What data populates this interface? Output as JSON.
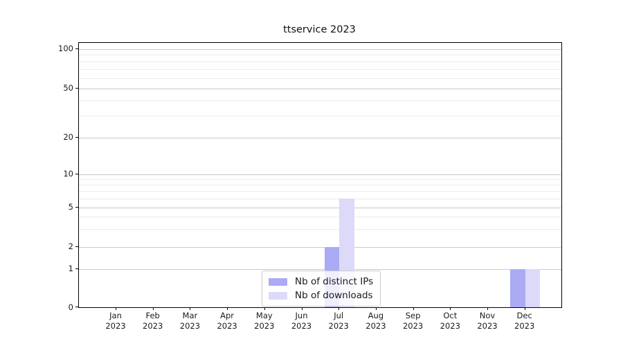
{
  "title": "ttservice 2023",
  "legend": {
    "items": [
      {
        "label": "Nb of distinct IPs",
        "color": "#aaaaf5"
      },
      {
        "label": "Nb of downloads",
        "color": "#dcdaf8"
      }
    ]
  },
  "chart_data": {
    "type": "bar",
    "title": "ttservice 2023",
    "categories": [
      "Jan",
      "Feb",
      "Mar",
      "Apr",
      "May",
      "Jun",
      "Jul",
      "Aug",
      "Sep",
      "Oct",
      "Nov",
      "Dec"
    ],
    "xtick_year": "2023",
    "series": [
      {
        "name": "Nb of distinct IPs",
        "color": "#aaaaf5",
        "values": [
          0,
          0,
          0,
          0,
          0,
          0,
          2,
          0,
          0,
          0,
          0,
          1
        ]
      },
      {
        "name": "Nb of downloads",
        "color": "#dcdaf8",
        "values": [
          0,
          0,
          0,
          0,
          0,
          0,
          6,
          0,
          0,
          0,
          0,
          1
        ]
      }
    ],
    "yscale": "symlog",
    "yticks": [
      0,
      1,
      2,
      5,
      10,
      20,
      50,
      100
    ],
    "y_minor_ticks": [
      3,
      4,
      6,
      7,
      8,
      9,
      30,
      40,
      60,
      70,
      80,
      90
    ],
    "ylim": [
      0,
      112
    ],
    "grid": "horizontal",
    "legend_position": "lower center"
  }
}
